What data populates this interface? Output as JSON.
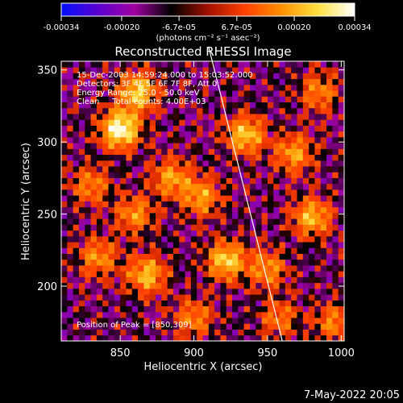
{
  "chart_data": {
    "type": "heatmap",
    "title": "Reconstructed RHESSI Image",
    "xlabel": "Heliocentric X (arcsec)",
    "ylabel": "Heliocentric Y (arcsec)",
    "xlim": [
      810,
      1002
    ],
    "ylim": [
      162,
      356
    ],
    "x_ticks": [
      850,
      900,
      950,
      1000
    ],
    "y_ticks": [
      200,
      250,
      300,
      350
    ],
    "colorbar": {
      "min": -0.00034,
      "max": 0.00034,
      "tick_values": [
        -0.00034,
        -0.0002,
        -6.7e-05,
        6.7e-05,
        0.0002,
        0.00034
      ],
      "tick_labels": [
        "-0.00034",
        "-0.00020",
        "-6.7e-05",
        "6.7e-05",
        "0.00020",
        "0.00034"
      ],
      "unit_label": "(photons cm⁻² s⁻¹ asec⁻²)",
      "colors": [
        "#0010ff",
        "#5a00d0",
        "#a000a0",
        "#000000",
        "#a01000",
        "#ff4000",
        "#ff9000",
        "#ffe040",
        "#ffffff"
      ]
    },
    "peak": {
      "x": 850,
      "y": 309
    },
    "limb_line": {
      "x_top": 910,
      "x_bottom": 960,
      "color": "#ffffff"
    },
    "bright_sources": [
      {
        "x": 850,
        "y": 309,
        "intensity": 1.0
      },
      {
        "x": 862,
        "y": 335,
        "intensity": 0.75
      },
      {
        "x": 935,
        "y": 305,
        "intensity": 0.7
      },
      {
        "x": 922,
        "y": 218,
        "intensity": 0.75
      },
      {
        "x": 980,
        "y": 248,
        "intensity": 0.65
      },
      {
        "x": 968,
        "y": 292,
        "intensity": 0.55
      },
      {
        "x": 868,
        "y": 208,
        "intensity": 0.65
      },
      {
        "x": 835,
        "y": 220,
        "intensity": 0.5
      },
      {
        "x": 905,
        "y": 262,
        "intensity": 0.55
      },
      {
        "x": 885,
        "y": 275,
        "intensity": 0.55
      },
      {
        "x": 950,
        "y": 212,
        "intensity": 0.5
      },
      {
        "x": 995,
        "y": 175,
        "intensity": 0.45
      },
      {
        "x": 900,
        "y": 178,
        "intensity": 0.45
      },
      {
        "x": 860,
        "y": 250,
        "intensity": 0.5
      },
      {
        "x": 830,
        "y": 270,
        "intensity": 0.45
      },
      {
        "x": 958,
        "y": 178,
        "intensity": 0.4
      },
      {
        "x": 985,
        "y": 335,
        "intensity": 0.45
      }
    ]
  },
  "annotations": {
    "time_range": "15-Dec-2003 14:59:24.000 to 15:03:52.000",
    "detectors": "Detectors: 3F 4F 5F 6F 7F 8F, Att 0",
    "energy": "Energy Range: 25.0 - 50.0 keV",
    "clean": "Clean     Total counts: 4.00E+03",
    "peak_position": "Position of Peak = [850,309]"
  },
  "footer": {
    "date_stamp": "7-May-2022 20:05"
  }
}
